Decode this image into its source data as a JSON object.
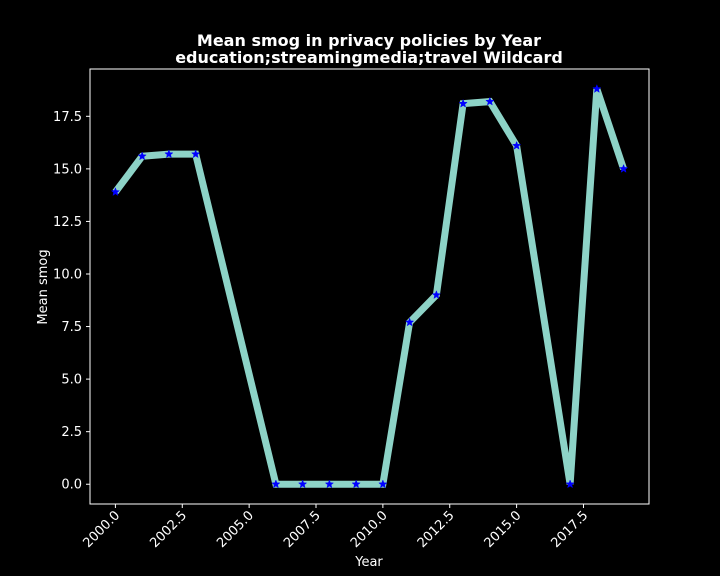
{
  "chart_data": {
    "type": "line",
    "title": "Mean smog in privacy policies by Year",
    "subtitle": "education;streamingmedia;travel Wildcard",
    "xlabel": "Year",
    "ylabel": "Mean smog",
    "xlim": [
      1999.05,
      2019.95
    ],
    "ylim": [
      -0.94,
      19.75
    ],
    "xticks": [
      2000.0,
      2002.5,
      2005.0,
      2007.5,
      2010.0,
      2012.5,
      2015.0,
      2017.5
    ],
    "xtick_labels": [
      "2000.0",
      "2002.5",
      "2005.0",
      "2007.5",
      "2010.0",
      "2012.5",
      "2015.0",
      "2017.5"
    ],
    "yticks": [
      0.0,
      2.5,
      5.0,
      7.5,
      10.0,
      12.5,
      15.0,
      17.5
    ],
    "ytick_labels": [
      "0.0",
      "2.5",
      "5.0",
      "7.5",
      "10.0",
      "12.5",
      "15.0",
      "17.5"
    ],
    "grid": false,
    "series": [
      {
        "name": "Mean smog",
        "x": [
          2000,
          2001,
          2002,
          2003,
          2006,
          2007,
          2008,
          2009,
          2010,
          2011,
          2012,
          2013,
          2014,
          2015,
          2017,
          2018,
          2019
        ],
        "values": [
          13.9,
          15.6,
          15.7,
          15.7,
          0.0,
          0.0,
          0.0,
          0.0,
          0.0,
          7.7,
          9.0,
          18.1,
          18.2,
          16.1,
          0.0,
          18.8,
          15.0
        ]
      }
    ],
    "colors": {
      "background": "#000000",
      "line": "#8dd3c7",
      "marker": "#0000ff",
      "axes": "#ffffff",
      "text": "#ffffff"
    },
    "marker": "star"
  }
}
